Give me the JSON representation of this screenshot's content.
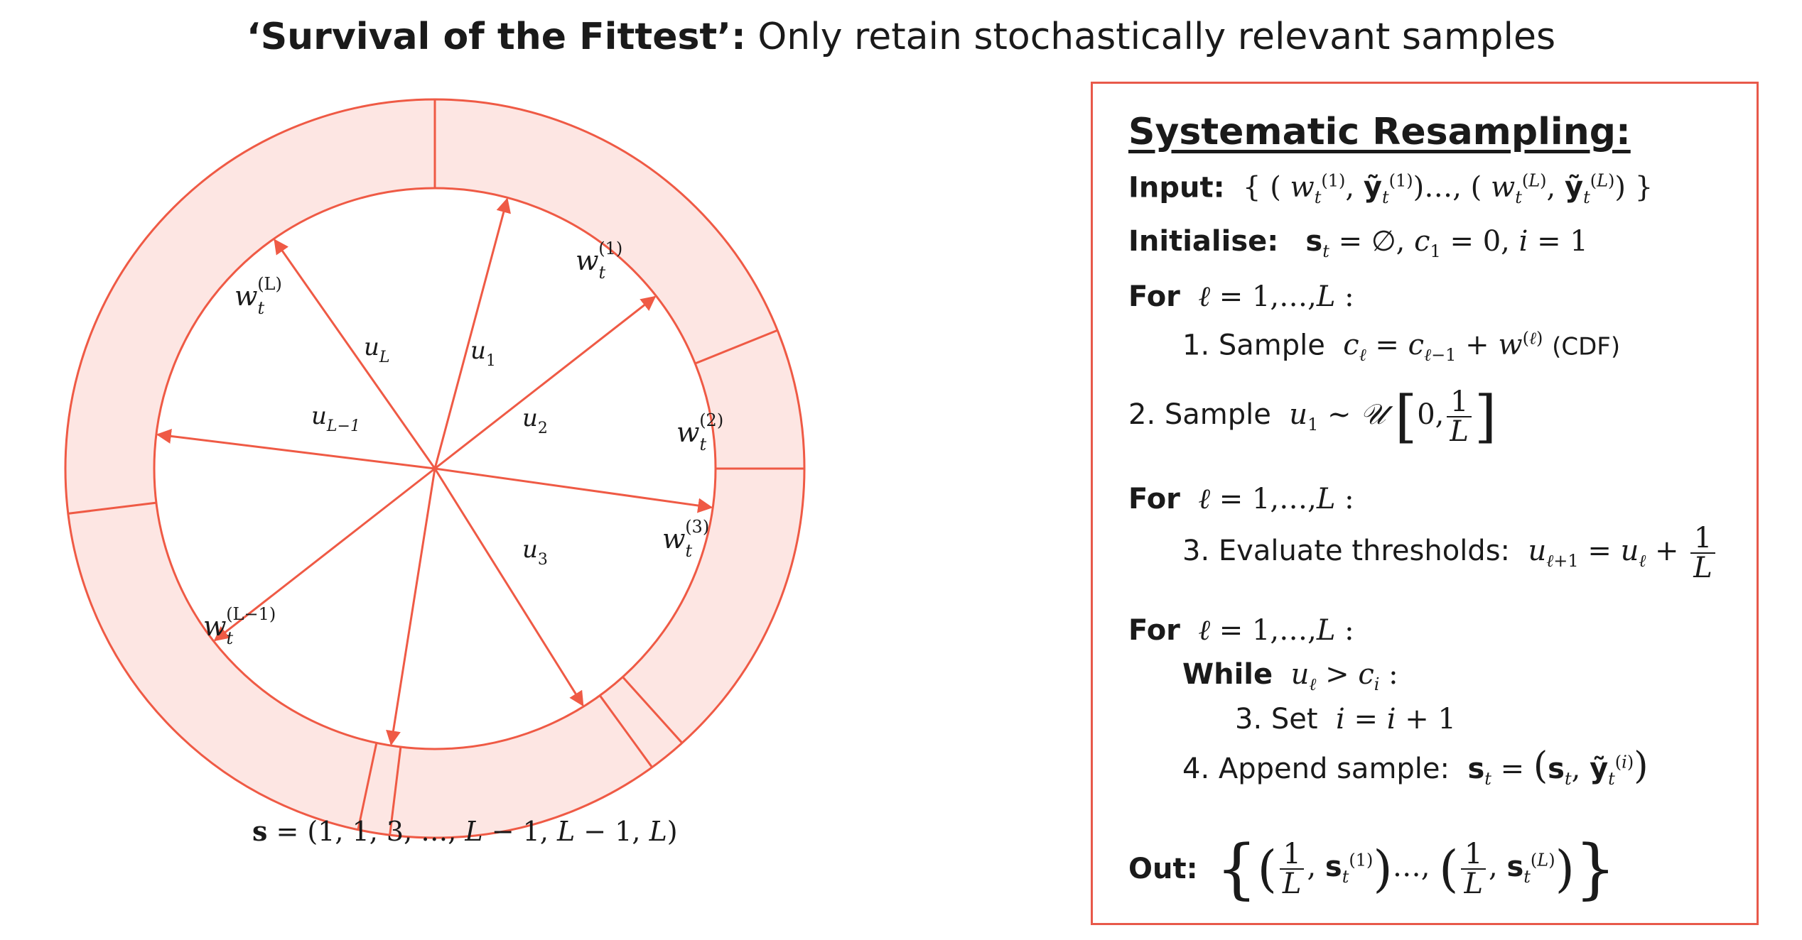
{
  "title": {
    "bold": "‘Survival of the Fittest’:",
    "rest": " Only retain stochastically relevant samples"
  },
  "wheel": {
    "weight_labels": [
      "w_t^(1)",
      "w_t^(2)",
      "w_t^(3)",
      "w_t^(L−1)",
      "w_t^(L)"
    ],
    "pointer_labels": [
      "u_1",
      "u_2",
      "u_3",
      "u_L−1",
      "u_L"
    ],
    "colors": {
      "ring_fill": "#fde6e3",
      "stroke": "#ef5a45"
    }
  },
  "sequence": "s = (1, 1, 3,  …, L − 1, L − 1, L)",
  "panel": {
    "heading": "Systematic Resampling:",
    "input_label": "Input:",
    "initialise_label": "Initialise:",
    "for_label": "For",
    "step1_text": "1. Sample",
    "step1_suffix": "(CDF)",
    "step2_text": "2. Sample",
    "step3_text": "3. Evaluate thresholds:",
    "while_label": "While",
    "step3b_text": "3. Set",
    "step4_text": "4. Append sample:",
    "out_label": "Out:"
  }
}
